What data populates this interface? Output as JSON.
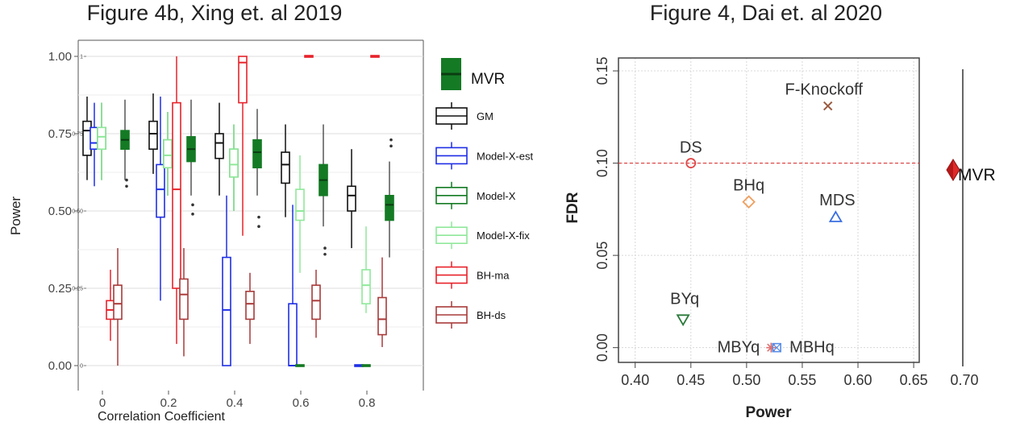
{
  "chart_data": [
    {
      "type": "boxplot",
      "title": "Figure 4b, Xing et. al 2019",
      "xlabel": "Correlation Coefficient",
      "ylabel": "Power",
      "categories": [
        "0",
        "0.2",
        "0.4",
        "0.6",
        "0.8"
      ],
      "ylim": [
        0,
        1
      ],
      "yticks": [
        "0.00",
        "0.25",
        "0.50",
        "0.75",
        "1.00"
      ],
      "inner_yticks": [
        "0",
        "0.25",
        "0.50",
        "0.75",
        "1"
      ],
      "legend": {
        "placement": "right",
        "mvr_label": "MVR",
        "items": [
          "GM",
          "Model-X-est",
          "Model-X",
          "Model-X-fix",
          "BH-ma",
          "BH-ds"
        ]
      },
      "colors": {
        "GM": "#111111",
        "Model-X-est": "#1f2fe6",
        "Model-X": "#137a22",
        "Model-X-fix": "#8fe89a",
        "BH-ma": "#e8222a",
        "BH-ds": "#a83a3a",
        "MVR_fill": "#147a24",
        "MVR_line": "#0b3d12"
      },
      "series": [
        {
          "name": "GM",
          "boxes": [
            {
              "min": 0.6,
              "q1": 0.68,
              "median": 0.76,
              "q3": 0.79,
              "max": 0.87,
              "outliers": []
            },
            {
              "min": 0.62,
              "q1": 0.7,
              "median": 0.75,
              "q3": 0.79,
              "max": 0.88,
              "outliers": []
            },
            {
              "min": 0.55,
              "q1": 0.67,
              "median": 0.72,
              "q3": 0.75,
              "max": 0.85,
              "outliers": []
            },
            {
              "min": 0.48,
              "q1": 0.59,
              "median": 0.65,
              "q3": 0.69,
              "max": 0.78,
              "outliers": []
            },
            {
              "min": 0.38,
              "q1": 0.5,
              "median": 0.55,
              "q3": 0.58,
              "max": 0.7,
              "outliers": []
            }
          ]
        },
        {
          "name": "Model-X-est",
          "boxes": [
            {
              "min": 0.58,
              "q1": 0.7,
              "median": 0.72,
              "q3": 0.77,
              "max": 0.85,
              "outliers": []
            },
            {
              "min": 0.21,
              "q1": 0.48,
              "median": 0.57,
              "q3": 0.65,
              "max": 0.87,
              "outliers": []
            },
            {
              "min": 0.0,
              "q1": 0.0,
              "median": 0.18,
              "q3": 0.35,
              "max": 0.55,
              "outliers": []
            },
            {
              "min": 0.0,
              "q1": 0.0,
              "median": 0.0,
              "q3": 0.2,
              "max": 0.52,
              "outliers": []
            },
            {
              "min": 0.0,
              "q1": 0.0,
              "median": 0.0,
              "q3": 0.0,
              "max": 0.0,
              "outliers": []
            }
          ]
        },
        {
          "name": "Model-X",
          "boxes": [
            {
              "min": 0.6,
              "q1": 0.7,
              "median": 0.74,
              "q3": 0.77,
              "max": 0.85,
              "outliers": []
            },
            {
              "min": 0.55,
              "q1": 0.64,
              "median": 0.68,
              "q3": 0.73,
              "max": 0.82,
              "outliers": []
            },
            {
              "min": 0.5,
              "q1": 0.61,
              "median": 0.65,
              "q3": 0.7,
              "max": 0.78,
              "outliers": []
            },
            {
              "min": 0.0,
              "q1": 0.0,
              "median": 0.0,
              "q3": 0.0,
              "max": 0.0,
              "outliers": []
            },
            {
              "min": 0.0,
              "q1": 0.0,
              "median": 0.0,
              "q3": 0.0,
              "max": 0.0,
              "outliers": []
            }
          ]
        },
        {
          "name": "Model-X-fix",
          "boxes": [
            {
              "min": 0.6,
              "q1": 0.7,
              "median": 0.74,
              "q3": 0.77,
              "max": 0.85,
              "outliers": []
            },
            {
              "min": 0.55,
              "q1": 0.64,
              "median": 0.68,
              "q3": 0.73,
              "max": 0.82,
              "outliers": []
            },
            {
              "min": 0.5,
              "q1": 0.61,
              "median": 0.65,
              "q3": 0.7,
              "max": 0.78,
              "outliers": []
            },
            {
              "min": 0.3,
              "q1": 0.47,
              "median": 0.5,
              "q3": 0.57,
              "max": 0.68,
              "outliers": []
            },
            {
              "min": 0.17,
              "q1": 0.2,
              "median": 0.26,
              "q3": 0.31,
              "max": 0.45,
              "outliers": []
            }
          ]
        },
        {
          "name": "BH-ma",
          "boxes": [
            {
              "min": 0.08,
              "q1": 0.15,
              "median": 0.18,
              "q3": 0.21,
              "max": 0.31,
              "outliers": []
            },
            {
              "min": 0.07,
              "q1": 0.25,
              "median": 0.57,
              "q3": 0.85,
              "max": 1.0,
              "outliers": []
            },
            {
              "min": 0.42,
              "q1": 0.85,
              "median": 0.98,
              "q3": 1.0,
              "max": 1.0,
              "outliers": []
            },
            {
              "min": 1.0,
              "q1": 1.0,
              "median": 1.0,
              "q3": 1.0,
              "max": 1.0,
              "outliers": []
            },
            {
              "min": 1.0,
              "q1": 1.0,
              "median": 1.0,
              "q3": 1.0,
              "max": 1.0,
              "outliers": []
            }
          ]
        },
        {
          "name": "BH-ds",
          "boxes": [
            {
              "min": 0.0,
              "q1": 0.15,
              "median": 0.2,
              "q3": 0.26,
              "max": 0.38,
              "outliers": []
            },
            {
              "min": 0.03,
              "q1": 0.15,
              "median": 0.23,
              "q3": 0.28,
              "max": 0.38,
              "outliers": []
            },
            {
              "min": 0.07,
              "q1": 0.15,
              "median": 0.2,
              "q3": 0.24,
              "max": 0.3,
              "outliers": []
            },
            {
              "min": 0.09,
              "q1": 0.15,
              "median": 0.21,
              "q3": 0.26,
              "max": 0.31,
              "outliers": []
            },
            {
              "min": 0.06,
              "q1": 0.1,
              "median": 0.15,
              "q3": 0.22,
              "max": 0.35,
              "outliers": []
            }
          ]
        },
        {
          "name": "MVR",
          "boxes": [
            {
              "min": 0.6,
              "q1": 0.7,
              "median": 0.73,
              "q3": 0.76,
              "max": 0.86,
              "outliers": [
                0.58,
                0.6
              ]
            },
            {
              "min": 0.55,
              "q1": 0.66,
              "median": 0.7,
              "q3": 0.74,
              "max": 0.86,
              "outliers": [
                0.49,
                0.52
              ]
            },
            {
              "min": 0.55,
              "q1": 0.64,
              "median": 0.69,
              "q3": 0.73,
              "max": 0.83,
              "outliers": [
                0.45,
                0.48
              ]
            },
            {
              "min": 0.45,
              "q1": 0.55,
              "median": 0.6,
              "q3": 0.65,
              "max": 0.78,
              "outliers": [
                0.36,
                0.38
              ]
            },
            {
              "min": 0.35,
              "q1": 0.47,
              "median": 0.52,
              "q3": 0.55,
              "max": 0.66,
              "outliers": [
                0.71,
                0.73
              ]
            }
          ]
        }
      ]
    },
    {
      "type": "scatter",
      "title": "Figure 4, Dai et. al 2020",
      "xlabel": "Power",
      "ylabel": "FDR",
      "xlim": [
        0.385,
        0.655
      ],
      "ylim": [
        -0.008,
        0.157
      ],
      "xticks": [
        0.4,
        0.45,
        0.5,
        0.55,
        0.6,
        0.65,
        0.7
      ],
      "xtick_labels": [
        "0.40",
        "0.45",
        "0.50",
        "0.55",
        "0.60",
        "0.65",
        "0.70"
      ],
      "yticks": [
        0.0,
        0.05,
        0.1,
        0.15
      ],
      "ytick_labels": [
        "0.00",
        "0.05",
        "0.10",
        "0.15"
      ],
      "reference_line": {
        "y": 0.1,
        "color": "#e03a3a",
        "style": "dashed"
      },
      "grid": true,
      "points": [
        {
          "label": "F-Knockoff",
          "x": 0.573,
          "y": 0.131,
          "marker": "x",
          "color": "#9a5a40"
        },
        {
          "label": "DS",
          "x": 0.45,
          "y": 0.1,
          "marker": "circle",
          "color": "#e04848"
        },
        {
          "label": "BHq",
          "x": 0.502,
          "y": 0.079,
          "marker": "diamond",
          "color": "#f0a060"
        },
        {
          "label": "MDS",
          "x": 0.58,
          "y": 0.071,
          "marker": "triangle-up",
          "color": "#3a6ee0"
        },
        {
          "label": "BYq",
          "x": 0.443,
          "y": 0.015,
          "marker": "triangle-down",
          "color": "#2a7a3a"
        },
        {
          "label": "MBYq",
          "x": 0.522,
          "y": 0.0,
          "marker": "star",
          "color": "#e07070"
        },
        {
          "label": "MBHq",
          "x": 0.527,
          "y": 0.0,
          "marker": "square-cross",
          "color": "#5a8ee8"
        }
      ],
      "legend": {
        "placement": "right",
        "mvr_label": "MVR",
        "mvr_color": "#e02a2a",
        "mvr_value_y": 0.096
      }
    }
  ]
}
